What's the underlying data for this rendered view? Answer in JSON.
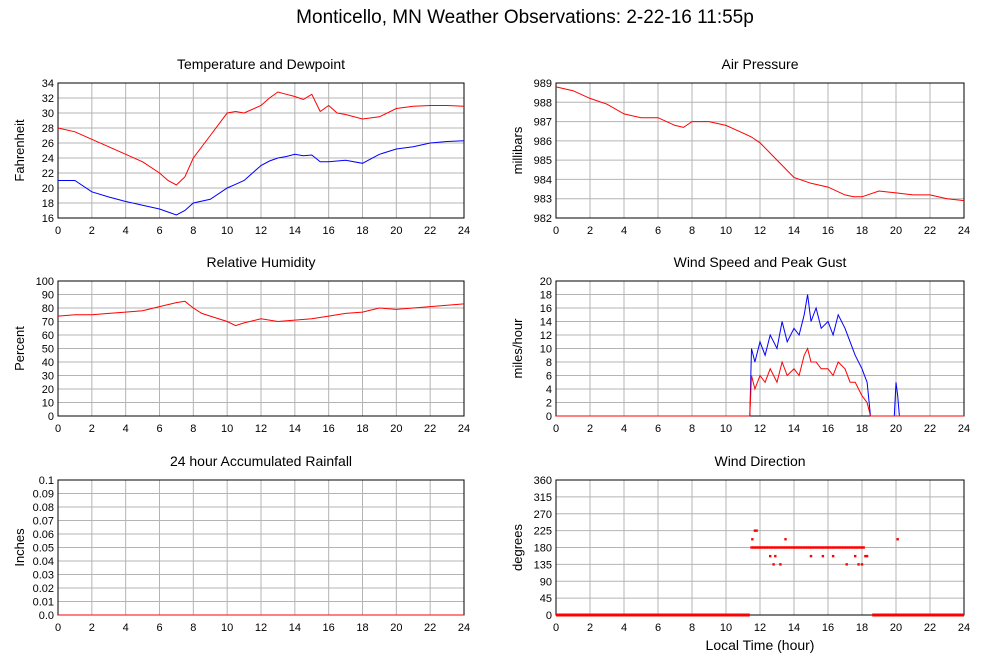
{
  "page_title": "Monticello, MN Weather Observations: 2-22-16 11:55p",
  "colors": {
    "red": "#ff0000",
    "blue": "#0000ff",
    "grid": "#b4b4b4",
    "frame": "#000000"
  },
  "chart_data": [
    {
      "id": "temperature",
      "type": "line",
      "title": "Temperature and Dewpoint",
      "ylabel": "Fahrenheit",
      "xlabel": "",
      "xlim": [
        0,
        24
      ],
      "ylim": [
        16,
        34
      ],
      "yticks": [
        "16",
        "18",
        "20",
        "22",
        "24",
        "26",
        "28",
        "30",
        "32",
        "34"
      ],
      "xticks": [
        "0",
        "2",
        "4",
        "6",
        "8",
        "10",
        "12",
        "14",
        "16",
        "18",
        "20",
        "22",
        "24"
      ],
      "grid": true,
      "series": [
        {
          "color": "#ff0000",
          "x": [
            0,
            1,
            2,
            3,
            4,
            5,
            6,
            6.5,
            7,
            7.5,
            8,
            9,
            10,
            10.5,
            11,
            12,
            12.5,
            13,
            13.5,
            14,
            14.5,
            15,
            15.5,
            16,
            16.5,
            17,
            18,
            19,
            20,
            21,
            22,
            23,
            24
          ],
          "y": [
            28,
            27.5,
            26.5,
            25.5,
            24.5,
            23.5,
            22,
            21,
            20.4,
            21.5,
            24,
            27,
            30,
            30.2,
            30,
            31,
            32,
            32.8,
            32.5,
            32.2,
            31.8,
            32.5,
            30.2,
            31,
            30,
            29.8,
            29.2,
            29.5,
            30.6,
            30.9,
            31,
            31,
            30.9
          ]
        },
        {
          "color": "#0000ff",
          "x": [
            0,
            1,
            2,
            3,
            4,
            5,
            6,
            6.5,
            7,
            7.5,
            8,
            9,
            10,
            10.5,
            11,
            12,
            12.5,
            13,
            13.5,
            14,
            14.5,
            15,
            15.5,
            16,
            17,
            18,
            19,
            20,
            21,
            22,
            23,
            24
          ],
          "y": [
            21,
            21,
            19.5,
            18.8,
            18.2,
            17.7,
            17.2,
            16.8,
            16.4,
            17,
            18,
            18.5,
            20,
            20.5,
            21,
            23,
            23.6,
            24,
            24.2,
            24.5,
            24.3,
            24.4,
            23.5,
            23.5,
            23.7,
            23.3,
            24.5,
            25.2,
            25.5,
            26,
            26.2,
            26.3
          ]
        }
      ]
    },
    {
      "id": "pressure",
      "type": "line",
      "title": "Air Pressure",
      "ylabel": "millibars",
      "xlabel": "",
      "xlim": [
        0,
        24
      ],
      "ylim": [
        982,
        989
      ],
      "yticks": [
        "982",
        "983",
        "984",
        "985",
        "986",
        "987",
        "988",
        "989"
      ],
      "xticks": [
        "0",
        "2",
        "4",
        "6",
        "8",
        "10",
        "12",
        "14",
        "16",
        "18",
        "20",
        "22",
        "24"
      ],
      "grid": true,
      "series": [
        {
          "color": "#ff0000",
          "x": [
            0,
            1,
            2,
            3,
            4,
            5,
            6,
            7,
            7.5,
            8,
            9,
            10,
            11,
            11.5,
            12,
            13,
            14,
            15,
            16,
            17,
            17.5,
            18,
            19,
            20,
            21,
            22,
            23,
            24
          ],
          "y": [
            988.8,
            988.6,
            988.2,
            987.9,
            987.4,
            987.2,
            987.2,
            986.8,
            986.7,
            987,
            987,
            986.8,
            986.4,
            986.2,
            985.9,
            985,
            984.1,
            983.8,
            983.6,
            983.2,
            983.1,
            983.1,
            983.4,
            983.3,
            983.2,
            983.2,
            983,
            982.9
          ]
        }
      ]
    },
    {
      "id": "humidity",
      "type": "line",
      "title": "Relative Humidity",
      "ylabel": "Percent",
      "xlabel": "",
      "xlim": [
        0,
        24
      ],
      "ylim": [
        0,
        100
      ],
      "yticks": [
        "0",
        "10",
        "20",
        "30",
        "40",
        "50",
        "60",
        "70",
        "80",
        "90",
        "100"
      ],
      "xticks": [
        "0",
        "2",
        "4",
        "6",
        "8",
        "10",
        "12",
        "14",
        "16",
        "18",
        "20",
        "22",
        "24"
      ],
      "grid": true,
      "series": [
        {
          "color": "#ff0000",
          "x": [
            0,
            1,
            2,
            3,
            4,
            5,
            6,
            7,
            7.5,
            8,
            8.5,
            9,
            10,
            10.5,
            11,
            12,
            13,
            14,
            15,
            16,
            17,
            18,
            19,
            20,
            21,
            22,
            23,
            24
          ],
          "y": [
            74,
            75,
            75,
            76,
            77,
            78,
            81,
            84,
            85,
            80,
            76,
            74,
            70,
            67,
            69,
            72,
            70,
            71,
            72,
            74,
            76,
            77,
            80,
            79,
            80,
            81,
            82,
            83
          ]
        }
      ]
    },
    {
      "id": "wind",
      "type": "line",
      "title": "Wind Speed and Peak Gust",
      "ylabel": "miles/hour",
      "xlabel": "",
      "xlim": [
        0,
        24
      ],
      "ylim": [
        0,
        20
      ],
      "yticks": [
        "0",
        "2",
        "4",
        "6",
        "8",
        "10",
        "12",
        "14",
        "16",
        "18",
        "20"
      ],
      "xticks": [
        "0",
        "2",
        "4",
        "6",
        "8",
        "10",
        "12",
        "14",
        "16",
        "18",
        "20",
        "22",
        "24"
      ],
      "grid": true,
      "series": [
        {
          "color": "#0000ff",
          "x": [
            0,
            11.4,
            11.5,
            11.7,
            12,
            12.3,
            12.6,
            13,
            13.3,
            13.6,
            14,
            14.3,
            14.6,
            14.8,
            15,
            15.3,
            15.6,
            16,
            16.3,
            16.6,
            17,
            17.3,
            17.6,
            18,
            18.3,
            18.5,
            18.6,
            19.9,
            20,
            20.1,
            20.2,
            24
          ],
          "y": [
            0,
            0,
            10,
            8,
            11,
            9,
            12,
            10,
            14,
            11,
            13,
            12,
            15,
            18,
            14,
            16,
            13,
            14,
            12,
            15,
            13,
            11,
            9,
            7,
            5,
            0,
            0,
            0,
            5,
            3,
            0,
            0
          ]
        },
        {
          "color": "#ff0000",
          "x": [
            0,
            11.4,
            11.5,
            11.7,
            12,
            12.3,
            12.6,
            13,
            13.3,
            13.6,
            14,
            14.3,
            14.6,
            14.8,
            15,
            15.3,
            15.6,
            16,
            16.3,
            16.6,
            17,
            17.3,
            17.6,
            18,
            18.3,
            18.5,
            24
          ],
          "y": [
            0,
            0,
            6,
            4,
            6,
            5,
            7,
            5,
            8,
            6,
            7,
            6,
            9,
            10,
            8,
            8,
            7,
            7,
            6,
            8,
            7,
            5,
            5,
            3,
            2,
            0,
            0
          ]
        }
      ]
    },
    {
      "id": "rainfall",
      "type": "line",
      "title": "24 hour Accumulated Rainfall",
      "ylabel": "Inches",
      "xlabel": "",
      "xlim": [
        0,
        24
      ],
      "ylim": [
        0,
        0.1
      ],
      "yticks": [
        "0.0",
        "0.01",
        "0.02",
        "0.03",
        "0.04",
        "0.05",
        "0.06",
        "0.07",
        "0.08",
        "0.09",
        "0.1"
      ],
      "xticks": [
        "0",
        "2",
        "4",
        "6",
        "8",
        "10",
        "12",
        "14",
        "16",
        "18",
        "20",
        "22",
        "24"
      ],
      "grid": true,
      "series": [
        {
          "color": "#ff0000",
          "x": [
            0,
            24
          ],
          "y": [
            0,
            0
          ]
        }
      ]
    },
    {
      "id": "direction",
      "type": "scatter",
      "title": "Wind Direction",
      "ylabel": "degrees",
      "xlabel": "Local Time (hour)",
      "xlim": [
        0,
        24
      ],
      "ylim": [
        0,
        360
      ],
      "yticks": [
        "0",
        "45",
        "90",
        "135",
        "180",
        "225",
        "270",
        "315",
        "360"
      ],
      "xticks": [
        "0",
        "2",
        "4",
        "6",
        "8",
        "10",
        "12",
        "14",
        "16",
        "18",
        "20",
        "22",
        "24"
      ],
      "grid": true,
      "series": [
        {
          "color": "#ff0000",
          "segments": [
            {
              "x": [
                0,
                11.4
              ],
              "y": [
                0,
                0
              ]
            },
            {
              "x": [
                18.6,
                24
              ],
              "y": [
                0,
                0
              ]
            }
          ],
          "x": [
            11.5,
            11.6,
            11.7,
            11.8,
            11.9,
            12,
            12.1,
            12.2,
            12.3,
            12.4,
            12.5,
            12.6,
            12.7,
            12.8,
            12.9,
            13,
            13.1,
            13.2,
            13.3,
            13.4,
            13.5,
            13.6,
            13.7,
            13.8,
            13.9,
            14,
            14.1,
            14.2,
            14.3,
            14.4,
            14.5,
            14.6,
            14.7,
            14.8,
            14.9,
            15,
            15.1,
            15.2,
            15.3,
            15.4,
            15.5,
            15.6,
            15.7,
            15.8,
            15.9,
            16,
            16.1,
            16.2,
            16.3,
            16.4,
            16.5,
            16.6,
            16.7,
            16.8,
            16.9,
            17,
            17.1,
            17.2,
            17.3,
            17.4,
            17.5,
            17.6,
            17.7,
            17.8,
            17.9,
            18,
            18.1,
            18.2,
            18.3,
            11.55,
            11.7,
            11.8,
            12.6,
            12.8,
            12.9,
            13.2,
            13.5,
            15,
            15.7,
            16.3,
            17.1,
            17.6,
            17.8,
            18,
            20.1
          ],
          "y": [
            180,
            180,
            180,
            180,
            180,
            180,
            180,
            180,
            180,
            180,
            180,
            180,
            180,
            180,
            180,
            180,
            180,
            180,
            180,
            180,
            180,
            180,
            180,
            180,
            180,
            180,
            180,
            180,
            180,
            180,
            180,
            180,
            180,
            180,
            180,
            180,
            180,
            180,
            180,
            180,
            180,
            180,
            180,
            180,
            180,
            180,
            180,
            180,
            180,
            180,
            180,
            180,
            180,
            180,
            180,
            180,
            180,
            180,
            180,
            180,
            180,
            180,
            180,
            180,
            180,
            180,
            180,
            157,
            157,
            202,
            225,
            225,
            157,
            135,
            157,
            135,
            202,
            157,
            157,
            157,
            135,
            157,
            135,
            135,
            202
          ]
        }
      ]
    }
  ]
}
